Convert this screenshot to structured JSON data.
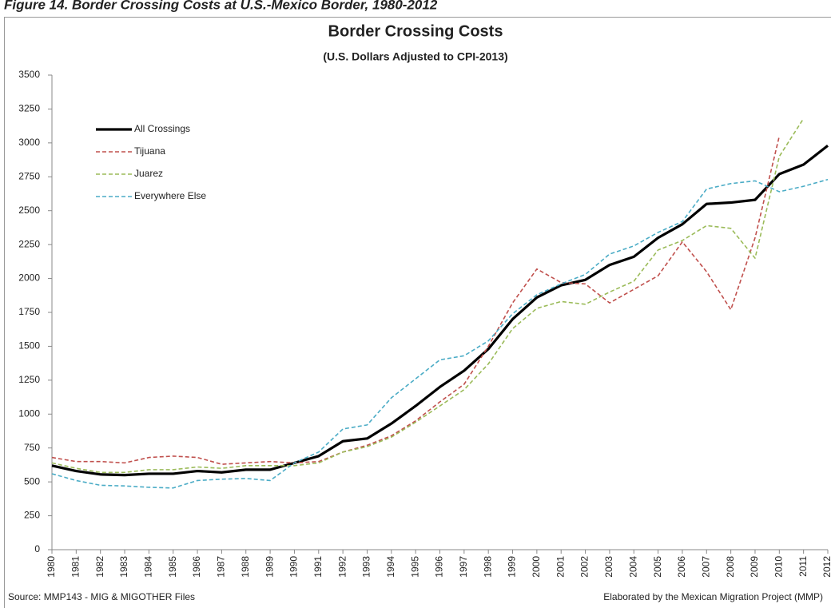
{
  "caption": "Figure 14. Border Crossing Costs at U.S.-Mexico Border, 1980-2012",
  "chart_data": {
    "type": "line",
    "title": "Border Crossing Costs",
    "subtitle": "(U.S. Dollars Adjusted to CPI-2013)",
    "source": "Source: MMP143 - MIG & MIGOTHER Files",
    "credit": "Elaborated by the Mexican Migration Project (MMP)",
    "categories": [
      "1980",
      "1981",
      "1982",
      "1983",
      "1984",
      "1985",
      "1986",
      "1987",
      "1988",
      "1989",
      "1990",
      "1991",
      "1992",
      "1993",
      "1994",
      "1995",
      "1996",
      "1997",
      "1998",
      "1999",
      "2000",
      "2001",
      "2002",
      "2003",
      "2004",
      "2005",
      "2006",
      "2007",
      "2008",
      "2009",
      "2010",
      "2011",
      "2012"
    ],
    "series": [
      {
        "name": "All Crossings",
        "color": "#000000",
        "dashed": false,
        "values": [
          620,
          580,
          555,
          550,
          560,
          560,
          580,
          570,
          590,
          590,
          640,
          690,
          800,
          820,
          930,
          1060,
          1200,
          1320,
          1480,
          1700,
          1860,
          1950,
          1990,
          2100,
          2160,
          2300,
          2400,
          2550,
          2560,
          2580,
          2770,
          2840,
          2980
        ]
      },
      {
        "name": "Tijuana",
        "color": "#c0504d",
        "dashed": true,
        "values": [
          680,
          650,
          650,
          640,
          680,
          690,
          680,
          630,
          640,
          650,
          640,
          650,
          720,
          770,
          840,
          950,
          1090,
          1220,
          1500,
          1820,
          2070,
          1970,
          1960,
          1820,
          1920,
          2020,
          2270,
          2050,
          1770,
          2300,
          3050,
          null,
          null
        ]
      },
      {
        "name": "Juarez",
        "color": "#9bbb59",
        "dashed": true,
        "values": [
          640,
          600,
          570,
          570,
          590,
          590,
          610,
          600,
          620,
          620,
          620,
          640,
          720,
          760,
          830,
          940,
          1060,
          1180,
          1370,
          1630,
          1780,
          1830,
          1810,
          1900,
          1980,
          2210,
          2280,
          2390,
          2370,
          2150,
          2900,
          3180,
          null
        ]
      },
      {
        "name": "Everywhere Else",
        "color": "#4bacc6",
        "dashed": true,
        "values": [
          560,
          510,
          475,
          470,
          460,
          455,
          510,
          520,
          525,
          510,
          640,
          720,
          890,
          920,
          1120,
          1260,
          1400,
          1430,
          1540,
          1740,
          1880,
          1960,
          2030,
          2180,
          2240,
          2340,
          2420,
          2660,
          2700,
          2720,
          2640,
          2680,
          2730
        ]
      }
    ],
    "ylim": [
      0,
      3500
    ],
    "yticks": [
      0,
      250,
      500,
      750,
      1000,
      1250,
      1500,
      1750,
      2000,
      2250,
      2500,
      2750,
      3000,
      3250,
      3500
    ],
    "grid": false,
    "legend": "upper left"
  }
}
